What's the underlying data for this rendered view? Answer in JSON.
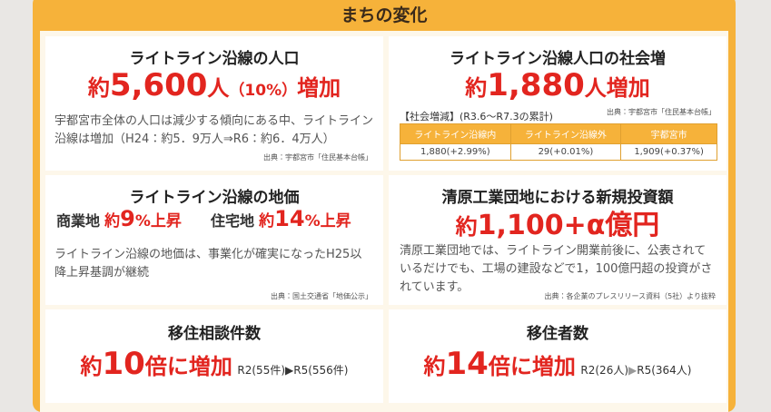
{
  "header": {
    "title": "まちの変化"
  },
  "panels": [
    {
      "title": "ライトライン沿線の人口",
      "headline": [
        "約",
        "5,600",
        "人",
        "（10%）",
        "増加"
      ],
      "body": "宇都宮市全体の人口は減少する傾向にある中、ライトライン沿線は増加（H24：約5．9万人⇒R6：約6．4万人）",
      "source": "出典：宇都宮市「住民基本台帳」"
    },
    {
      "title": "ライトライン沿線人口の社会増",
      "headline": [
        "約",
        "1,880",
        "人",
        "増加"
      ],
      "subtitle": "【社会増減】(R3.6～R7.3の累計)",
      "source": "出典：宇都宮市「住民基本台帳」",
      "table": {
        "headers": [
          "ライトライン沿線内",
          "ライトライン沿線外",
          "宇都宮市"
        ],
        "rows": [
          [
            "1,880(+2.99%)",
            "29(+0.01%)",
            "1,909(+0.37%)"
          ]
        ]
      }
    },
    {
      "title": "ライトライン沿線の地価",
      "items": [
        {
          "label": "商業地",
          "value": [
            "約",
            "9",
            "%上昇"
          ]
        },
        {
          "label": "住宅地",
          "value": [
            "約",
            "14",
            "%上昇"
          ]
        }
      ],
      "body": "ライトライン沿線の地価は、事業化が確実になったH25以降上昇基調が継続",
      "source": "出典：国土交通省「地価公示」"
    },
    {
      "title": "清原工業団地における新規投資額",
      "headline": [
        "約",
        "1,100+α",
        "億円"
      ],
      "body": "清原工業団地では、ライトライン開業前後に、公表されているだけでも、工場の建設などで1，100億円超の投資がされています。",
      "source": "出典：各企業のプレスリリース資料（5社）より抜粋"
    },
    {
      "title": "移住相談件数",
      "headline": [
        "約",
        "10",
        "倍に増加"
      ],
      "from": "R2(55件)",
      "to": "R5(556件)"
    },
    {
      "title": "移住者数",
      "headline": [
        "約",
        "14",
        "倍に増加"
      ],
      "from": "R2(26人)",
      "to": "R5(364人)"
    }
  ]
}
